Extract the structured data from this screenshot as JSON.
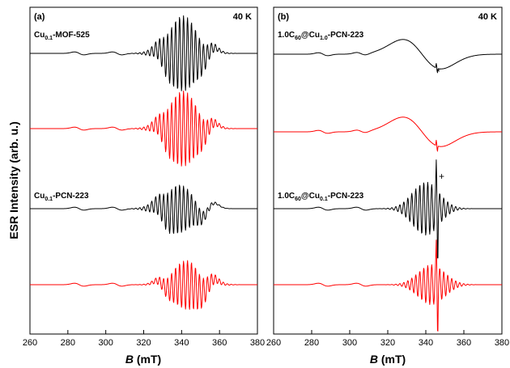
{
  "chart_data": [
    {
      "type": "line",
      "panel_label": "(a)",
      "temperature": "40 K",
      "xlabel_italic": "B",
      "xlabel_unit": " (mT)",
      "ylabel": "ESR Intensity (arb. u.)",
      "xlim": [
        260,
        380
      ],
      "xticks": [
        "260",
        "280",
        "300",
        "320",
        "340",
        "360",
        "380"
      ],
      "annotations": [
        {
          "base": "Cu",
          "sub": "0.1",
          "rest": "-MOF-525"
        },
        {
          "base": "Cu",
          "sub": "0.1",
          "rest": "-PCN-223"
        }
      ],
      "series": [
        {
          "color": "#000000",
          "kind": "experimental",
          "sample": 0,
          "hyperfine": 0.85,
          "hf_center": 340.5,
          "dip": 0
        },
        {
          "color": "#ff0000",
          "kind": "simulated",
          "sample": 0,
          "hyperfine": 0.85,
          "hf_center": 340.5,
          "dip": 0
        },
        {
          "color": "#000000",
          "kind": "experimental",
          "sample": 1,
          "hyperfine": 0.55,
          "hf_center": 338,
          "dip": 0.3
        },
        {
          "color": "#ff0000",
          "kind": "simulated",
          "sample": 1,
          "hyperfine": 0.55,
          "hf_center": 343,
          "dip": 0.2
        }
      ]
    },
    {
      "type": "line",
      "panel_label": "(b)",
      "temperature": "40 K",
      "xlabel_italic": "B",
      "xlabel_unit": " (mT)",
      "xlim": [
        260,
        380
      ],
      "xticks": [
        "260",
        "280",
        "300",
        "320",
        "340",
        "360",
        "380"
      ],
      "annotations": [
        {
          "base": "1.0C",
          "sub": "60",
          "mid": "@Cu",
          "sub2": "1.0",
          "rest": "-PCN-223"
        },
        {
          "base": "1.0C",
          "sub": "60",
          "mid": "@Cu",
          "sub2": "0.1",
          "rest": "-PCN-223"
        }
      ],
      "markers": [
        "*",
        "+"
      ],
      "series": [
        {
          "color": "#000000",
          "kind": "experimental",
          "sample": 0,
          "broad": 1,
          "spike": 0.25
        },
        {
          "color": "#ff0000",
          "kind": "simulated",
          "sample": 0,
          "broad": 1,
          "spike": 0.3
        },
        {
          "color": "#000000",
          "kind": "experimental",
          "sample": 1,
          "hyperfine": 0.6,
          "hf_center": 340,
          "spike": 1
        },
        {
          "color": "#ff0000",
          "kind": "simulated",
          "sample": 1,
          "hyperfine": 0.45,
          "hf_center": 343,
          "spike": 0.9
        }
      ]
    }
  ]
}
